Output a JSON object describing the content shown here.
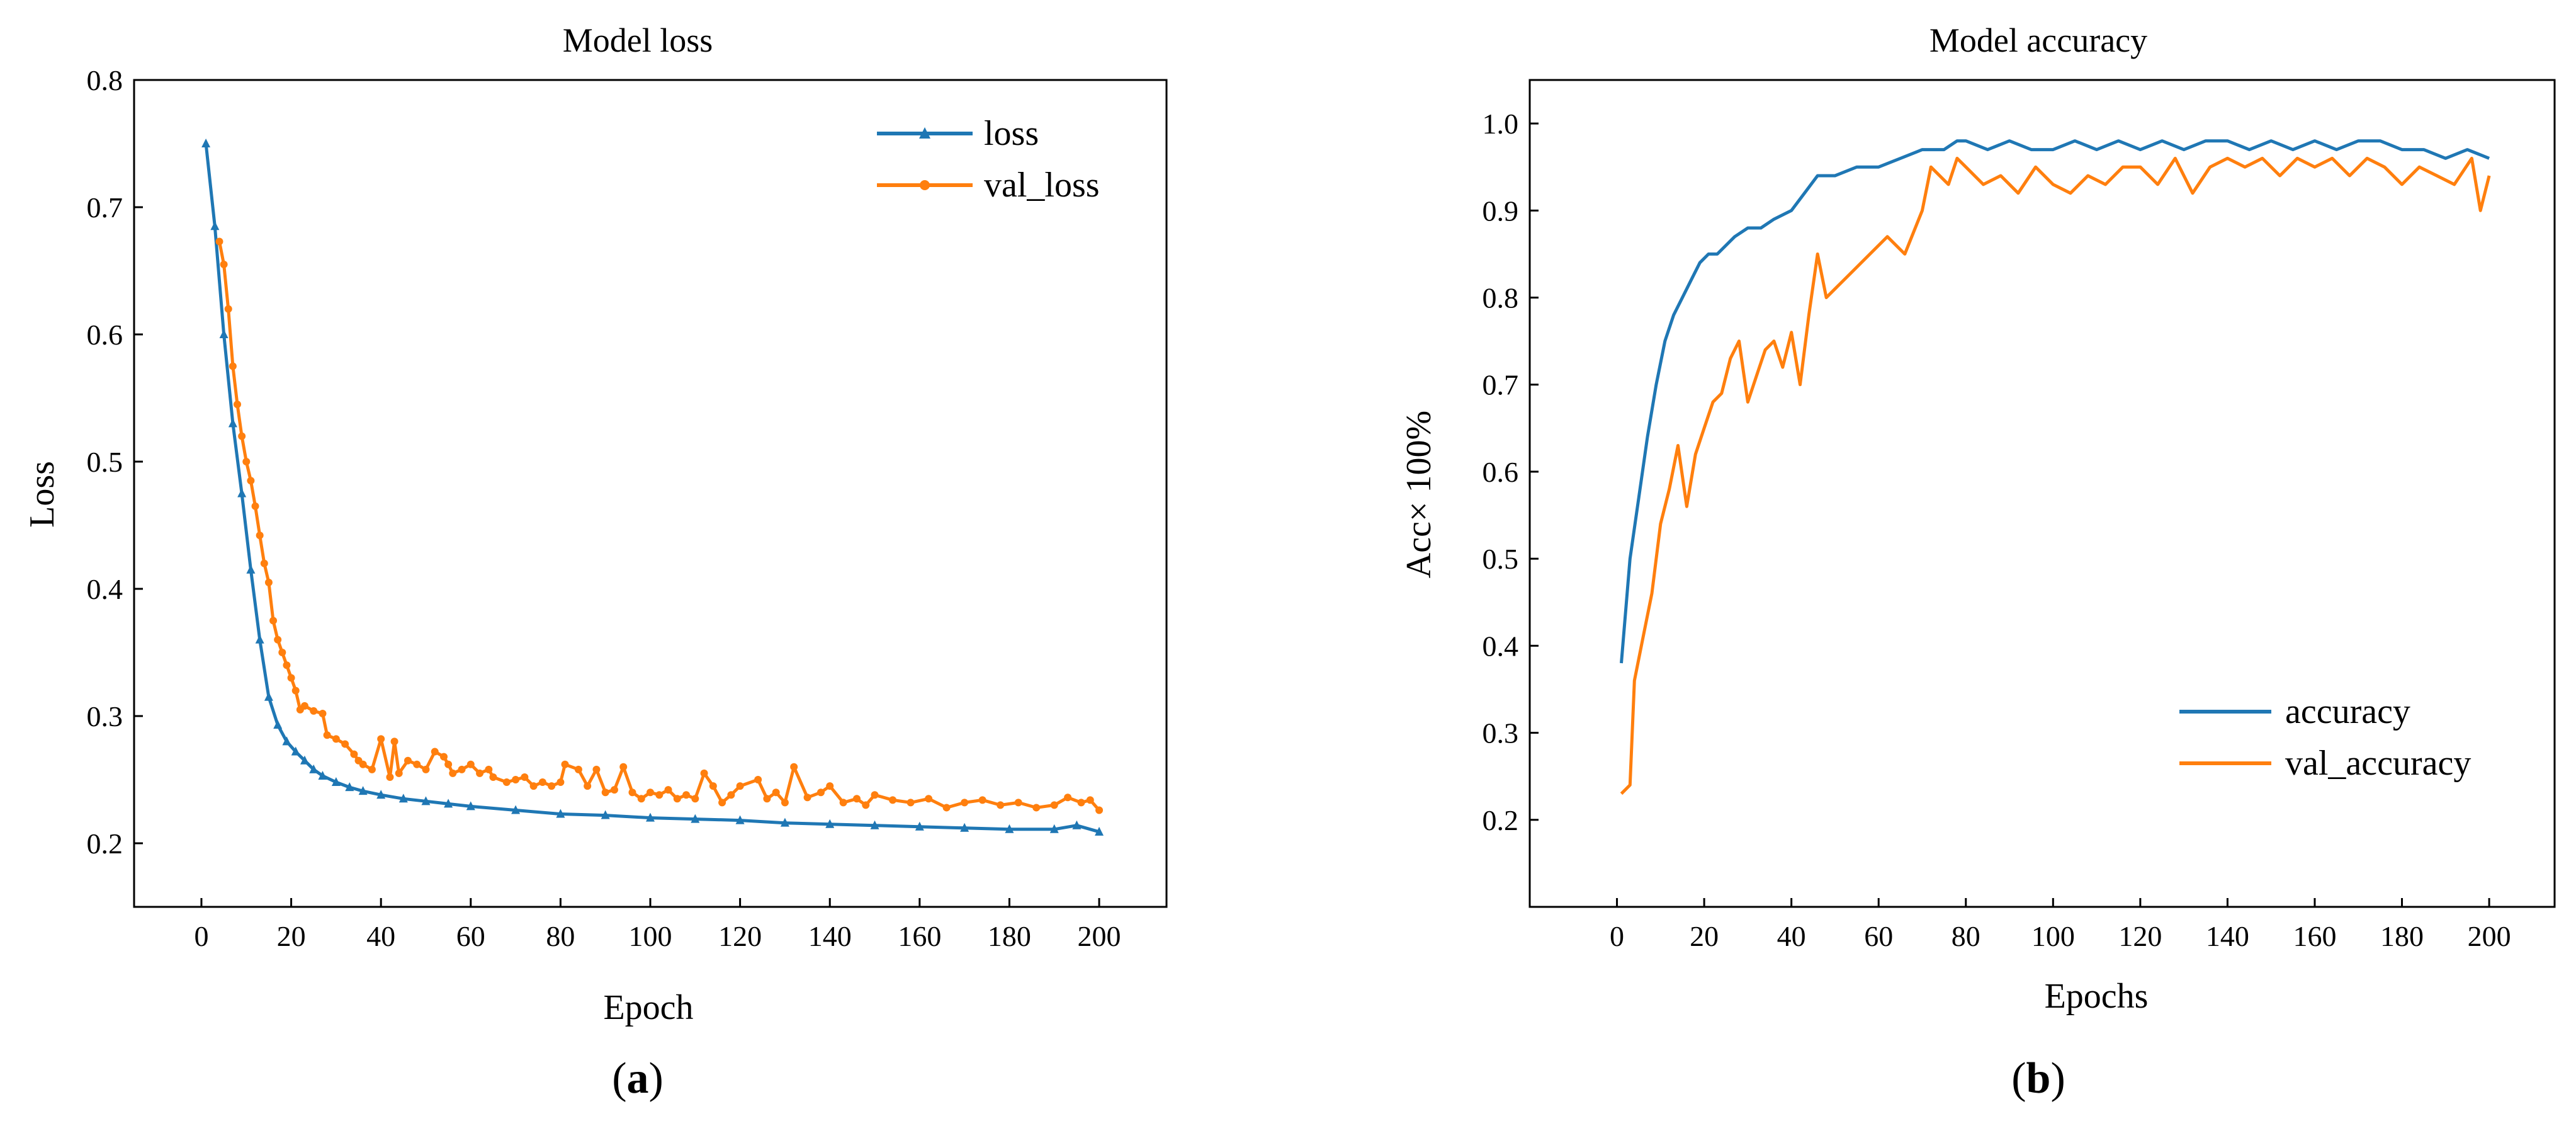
{
  "chart_data": [
    {
      "type": "line",
      "title": "Model loss",
      "xlabel": "Epoch",
      "ylabel": "Loss",
      "panel_label": "a",
      "xlim": [
        -15,
        215
      ],
      "ylim": [
        0.15,
        0.8
      ],
      "xticks": [
        0,
        20,
        40,
        60,
        80,
        100,
        120,
        140,
        160,
        180,
        200
      ],
      "yticks": [
        0.2,
        0.3,
        0.4,
        0.5,
        0.6,
        0.7,
        0.8
      ],
      "grid": false,
      "legend_position": "top-right",
      "colors": {
        "loss": "#1f77b4",
        "val_loss": "#ff7f0e"
      },
      "series": [
        {
          "name": "loss",
          "marker": "triangle",
          "x": [
            1,
            3,
            5,
            7,
            9,
            11,
            13,
            15,
            17,
            19,
            21,
            23,
            25,
            27,
            30,
            33,
            36,
            40,
            45,
            50,
            55,
            60,
            70,
            80,
            90,
            100,
            110,
            120,
            130,
            140,
            150,
            160,
            170,
            180,
            190,
            195,
            200
          ],
          "values": [
            0.75,
            0.685,
            0.6,
            0.53,
            0.475,
            0.415,
            0.36,
            0.315,
            0.293,
            0.28,
            0.272,
            0.265,
            0.258,
            0.253,
            0.248,
            0.244,
            0.241,
            0.238,
            0.235,
            0.233,
            0.231,
            0.229,
            0.226,
            0.223,
            0.222,
            0.22,
            0.219,
            0.218,
            0.216,
            0.215,
            0.214,
            0.213,
            0.212,
            0.211,
            0.211,
            0.214,
            0.209
          ]
        },
        {
          "name": "val_loss",
          "marker": "circle",
          "x": [
            4,
            5,
            6,
            7,
            8,
            9,
            10,
            11,
            12,
            13,
            14,
            15,
            16,
            17,
            18,
            19,
            20,
            21,
            22,
            23,
            25,
            27,
            28,
            30,
            32,
            34,
            35,
            36,
            38,
            40,
            42,
            43,
            44,
            46,
            48,
            50,
            52,
            54,
            55,
            56,
            58,
            60,
            62,
            64,
            65,
            68,
            70,
            72,
            74,
            76,
            78,
            80,
            81,
            84,
            86,
            88,
            90,
            92,
            94,
            96,
            98,
            100,
            102,
            104,
            106,
            108,
            110,
            112,
            114,
            116,
            118,
            120,
            124,
            126,
            128,
            130,
            132,
            135,
            138,
            140,
            143,
            146,
            148,
            150,
            154,
            158,
            162,
            166,
            170,
            174,
            178,
            182,
            186,
            190,
            193,
            196,
            198,
            200
          ],
          "values": [
            0.673,
            0.655,
            0.62,
            0.575,
            0.545,
            0.52,
            0.5,
            0.485,
            0.465,
            0.442,
            0.42,
            0.405,
            0.375,
            0.36,
            0.35,
            0.34,
            0.33,
            0.32,
            0.305,
            0.308,
            0.304,
            0.302,
            0.285,
            0.282,
            0.278,
            0.27,
            0.265,
            0.262,
            0.258,
            0.282,
            0.252,
            0.28,
            0.255,
            0.265,
            0.262,
            0.258,
            0.272,
            0.268,
            0.262,
            0.255,
            0.258,
            0.262,
            0.255,
            0.258,
            0.252,
            0.248,
            0.25,
            0.252,
            0.245,
            0.248,
            0.245,
            0.248,
            0.262,
            0.258,
            0.245,
            0.258,
            0.24,
            0.242,
            0.26,
            0.24,
            0.235,
            0.24,
            0.238,
            0.242,
            0.235,
            0.238,
            0.235,
            0.255,
            0.245,
            0.232,
            0.238,
            0.245,
            0.25,
            0.235,
            0.24,
            0.232,
            0.26,
            0.236,
            0.24,
            0.245,
            0.232,
            0.235,
            0.23,
            0.238,
            0.234,
            0.232,
            0.235,
            0.228,
            0.232,
            0.234,
            0.23,
            0.232,
            0.228,
            0.23,
            0.236,
            0.232,
            0.234,
            0.226
          ]
        }
      ]
    },
    {
      "type": "line",
      "title": "Model accuracy",
      "xlabel": "Epochs",
      "ylabel": "Acc× 100%",
      "panel_label": "b",
      "xlim": [
        -20,
        215
      ],
      "ylim": [
        0.1,
        1.05
      ],
      "xticks": [
        0,
        20,
        40,
        60,
        80,
        100,
        120,
        140,
        160,
        180,
        200
      ],
      "yticks": [
        0.2,
        0.3,
        0.4,
        0.5,
        0.6,
        0.7,
        0.8,
        0.9,
        1.0
      ],
      "grid": false,
      "legend_position": "bottom-right",
      "colors": {
        "accuracy": "#1f77b4",
        "val_accuracy": "#ff7f0e"
      },
      "series": [
        {
          "name": "accuracy",
          "x": [
            1,
            3,
            5,
            7,
            9,
            11,
            13,
            15,
            17,
            19,
            21,
            23,
            25,
            27,
            30,
            33,
            36,
            40,
            43,
            46,
            50,
            55,
            60,
            65,
            70,
            75,
            78,
            80,
            85,
            90,
            95,
            100,
            105,
            110,
            115,
            120,
            125,
            130,
            135,
            140,
            145,
            150,
            155,
            160,
            165,
            170,
            175,
            180,
            185,
            190,
            195,
            200
          ],
          "values": [
            0.38,
            0.5,
            0.57,
            0.64,
            0.7,
            0.75,
            0.78,
            0.8,
            0.82,
            0.84,
            0.85,
            0.85,
            0.86,
            0.87,
            0.88,
            0.88,
            0.89,
            0.9,
            0.92,
            0.94,
            0.94,
            0.95,
            0.95,
            0.96,
            0.97,
            0.97,
            0.98,
            0.98,
            0.97,
            0.98,
            0.97,
            0.97,
            0.98,
            0.97,
            0.98,
            0.97,
            0.98,
            0.97,
            0.98,
            0.98,
            0.97,
            0.98,
            0.97,
            0.98,
            0.97,
            0.98,
            0.98,
            0.97,
            0.97,
            0.96,
            0.97,
            0.96
          ]
        },
        {
          "name": "val_accuracy",
          "x": [
            1,
            3,
            4,
            6,
            8,
            10,
            12,
            14,
            16,
            18,
            20,
            22,
            24,
            26,
            28,
            30,
            32,
            34,
            36,
            38,
            40,
            42,
            44,
            46,
            48,
            50,
            54,
            58,
            62,
            66,
            70,
            72,
            76,
            78,
            80,
            84,
            88,
            92,
            96,
            100,
            104,
            108,
            112,
            116,
            120,
            124,
            128,
            132,
            136,
            140,
            144,
            148,
            152,
            156,
            160,
            164,
            168,
            172,
            176,
            180,
            184,
            188,
            192,
            196,
            198,
            200
          ],
          "values": [
            0.23,
            0.24,
            0.36,
            0.41,
            0.46,
            0.54,
            0.58,
            0.63,
            0.56,
            0.62,
            0.65,
            0.68,
            0.69,
            0.73,
            0.75,
            0.68,
            0.71,
            0.74,
            0.75,
            0.72,
            0.76,
            0.7,
            0.78,
            0.85,
            0.8,
            0.81,
            0.83,
            0.85,
            0.87,
            0.85,
            0.9,
            0.95,
            0.93,
            0.96,
            0.95,
            0.93,
            0.94,
            0.92,
            0.95,
            0.93,
            0.92,
            0.94,
            0.93,
            0.95,
            0.95,
            0.93,
            0.96,
            0.92,
            0.95,
            0.96,
            0.95,
            0.96,
            0.94,
            0.96,
            0.95,
            0.96,
            0.94,
            0.96,
            0.95,
            0.93,
            0.95,
            0.94,
            0.93,
            0.96,
            0.9,
            0.94
          ]
        }
      ]
    }
  ]
}
